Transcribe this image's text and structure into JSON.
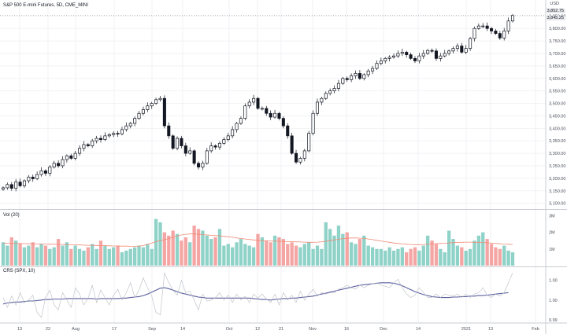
{
  "header": {
    "title": "S&P 500 E-mini Futures, 5D, CME_MINI"
  },
  "price_axis": {
    "currency": "USD",
    "last_price_label": "3,852.75",
    "secondary_label": "3,845.25"
  },
  "volume_pane": {
    "title": "Vol (20)"
  },
  "crs_pane": {
    "title": "CRS (SPX, 10)"
  },
  "colors": {
    "up": "#26a69a",
    "down": "#ef5350",
    "vol_up": "#8fd2c8",
    "vol_down": "#f4a6a4",
    "ma": "#f08a76",
    "crs_main": "#5a5f9e",
    "crs_ref": "#b9bcc3",
    "grid": "#f0f2f5",
    "axis": "#c9ccd3"
  },
  "chart_data": [
    {
      "type": "candlestick",
      "title": "S&P 500 E-mini Futures, 5D, CME_MINI",
      "x_tick_labels": [
        "13",
        "22",
        "Aug",
        "17",
        "Sep",
        "14",
        "Oct",
        "12",
        "21",
        "Nov",
        "16",
        "Dec",
        "14",
        "2021",
        "13",
        "Feb"
      ],
      "ylim": [
        3080,
        3870
      ],
      "y_tick_labels": [
        "3,850.00",
        "3,800.00",
        "3,750.00",
        "3,700.00",
        "3,650.00",
        "3,600.00",
        "3,550.00",
        "3,500.00",
        "3,450.00",
        "3,400.00",
        "3,350.00",
        "3,300.00",
        "3,250.00",
        "3,200.00",
        "3,150.00",
        "3,100.00"
      ],
      "y_ticks": [
        3850,
        3800,
        3750,
        3700,
        3650,
        3600,
        3550,
        3500,
        3450,
        3400,
        3350,
        3300,
        3250,
        3200,
        3150,
        3100
      ],
      "close": [
        3162,
        3175,
        3160,
        3185,
        3170,
        3190,
        3205,
        3198,
        3215,
        3230,
        3220,
        3245,
        3260,
        3250,
        3275,
        3290,
        3280,
        3300,
        3320,
        3335,
        3330,
        3350,
        3360,
        3355,
        3370,
        3375,
        3380,
        3378,
        3395,
        3410,
        3420,
        3440,
        3460,
        3475,
        3490,
        3500,
        3515,
        3520,
        3410,
        3370,
        3320,
        3360,
        3330,
        3300,
        3310,
        3260,
        3245,
        3260,
        3310,
        3330,
        3325,
        3340,
        3355,
        3370,
        3395,
        3420,
        3440,
        3490,
        3505,
        3520,
        3480,
        3480,
        3460,
        3445,
        3460,
        3440,
        3410,
        3370,
        3300,
        3265,
        3280,
        3310,
        3380,
        3460,
        3505,
        3520,
        3540,
        3550,
        3560,
        3580,
        3600,
        3595,
        3610,
        3620,
        3600,
        3615,
        3630,
        3640,
        3660,
        3670,
        3680,
        3685,
        3690,
        3700,
        3705,
        3695,
        3680,
        3670,
        3690,
        3700,
        3712,
        3710,
        3680,
        3690,
        3700,
        3710,
        3720,
        3730,
        3705,
        3720,
        3760,
        3800,
        3810,
        3810,
        3800,
        3790,
        3780,
        3762,
        3790,
        3830,
        3852
      ]
    },
    {
      "type": "bar",
      "title": "Vol (20)",
      "y_tick_labels": [
        "3M",
        "2M",
        "1M"
      ],
      "y_ticks": [
        3,
        2,
        1
      ],
      "ylim": [
        0,
        3.3
      ],
      "values": [
        1.4,
        1.2,
        1.7,
        1.5,
        1.3,
        1.1,
        1.2,
        1.4,
        1.1,
        1.3,
        1.2,
        1.0,
        1.1,
        1.6,
        1.2,
        1.4,
        1.0,
        1.2,
        1.0,
        0.9,
        1.1,
        1.3,
        1.0,
        1.5,
        1.2,
        1.0,
        1.1,
        1.2,
        0.8,
        0.9,
        1.0,
        1.1,
        1.2,
        1.1,
        1.3,
        1.0,
        2.8,
        2.6,
        2.0,
        1.8,
        2.1,
        1.9,
        1.5,
        1.7,
        1.4,
        2.4,
        2.2,
        2.1,
        1.8,
        1.6,
        1.7,
        2.2,
        1.2,
        1.3,
        1.1,
        1.4,
        1.6,
        1.3,
        1.2,
        1.1,
        1.9,
        1.7,
        1.5,
        1.4,
        1.8,
        1.7,
        1.6,
        1.3,
        1.4,
        1.2,
        1.1,
        1.3,
        1.4,
        1.0,
        1.2,
        1.0,
        2.6,
        2.2,
        1.8,
        2.4,
        1.9,
        2.0,
        1.4,
        1.3,
        1.6,
        1.8,
        1.2,
        1.1,
        1.0,
        1.0,
        0.9,
        1.1,
        0.9,
        1.0,
        1.1,
        0.8,
        1.0,
        1.1,
        0.9,
        1.2,
        1.8,
        1.5,
        1.3,
        1.0,
        0.8,
        2.1,
        1.6,
        1.2,
        1.1,
        0.9,
        1.0,
        1.5,
        1.8,
        2.0,
        1.6,
        1.3,
        1.1,
        1.0,
        1.2,
        0.9,
        0.8
      ],
      "ma": [
        1.35,
        1.34,
        1.34,
        1.33,
        1.33,
        1.32,
        1.31,
        1.31,
        1.3,
        1.3,
        1.29,
        1.28,
        1.28,
        1.27,
        1.27,
        1.26,
        1.25,
        1.25,
        1.24,
        1.23,
        1.22,
        1.22,
        1.21,
        1.2,
        1.2,
        1.19,
        1.18,
        1.18,
        1.17,
        1.17,
        1.16,
        1.16,
        1.17,
        1.2,
        1.28,
        1.36,
        1.44,
        1.5,
        1.56,
        1.62,
        1.7,
        1.78,
        1.84,
        1.88,
        1.9,
        1.9,
        1.88,
        1.86,
        1.84,
        1.82,
        1.8,
        1.78,
        1.76,
        1.73,
        1.7,
        1.66,
        1.63,
        1.6,
        1.57,
        1.54,
        1.52,
        1.5,
        1.49,
        1.48,
        1.47,
        1.46,
        1.45,
        1.44,
        1.44,
        1.43,
        1.42,
        1.41,
        1.4,
        1.4,
        1.41,
        1.43,
        1.46,
        1.5,
        1.54,
        1.58,
        1.62,
        1.64,
        1.66,
        1.66,
        1.65,
        1.63,
        1.6,
        1.56,
        1.52,
        1.48,
        1.44,
        1.4,
        1.36,
        1.33,
        1.3,
        1.28,
        1.27,
        1.26,
        1.26,
        1.27,
        1.28,
        1.3,
        1.32,
        1.33,
        1.34,
        1.36,
        1.38,
        1.39,
        1.4,
        1.41,
        1.41,
        1.4,
        1.39,
        1.38,
        1.37,
        1.35,
        1.33,
        1.31,
        1.29,
        1.28,
        1.27
      ]
    },
    {
      "type": "line",
      "title": "CRS (SPX, 10)",
      "y_tick_labels": [
        "1.00",
        "1.00",
        "0.99"
      ],
      "y_ticks": [
        1.004,
        1.0,
        0.996
      ],
      "ylim": [
        0.9955,
        1.0065
      ],
      "series": [
        {
          "values": [
            0.9992,
            0.9994,
            0.9995,
            0.9996,
            0.9996,
            0.9997,
            0.9998,
            0.9998,
            0.9999,
            1.0,
            1.0001,
            1.0001,
            1.0002,
            1.0002,
            1.0002,
            1.0003,
            1.0003,
            1.0003,
            1.0003,
            1.0003,
            1.0003,
            1.0003,
            1.0002,
            1.0003,
            1.0003,
            1.0003,
            1.0003,
            1.0003,
            1.0004,
            1.0004,
            1.0005,
            1.0006,
            1.0007,
            1.0009,
            1.0012,
            1.0016,
            1.002,
            1.0024,
            1.0025,
            1.0023,
            1.002,
            1.0017,
            1.0014,
            1.0012,
            1.001,
            1.0008,
            1.0006,
            1.0005,
            1.0004,
            1.0004,
            1.0004,
            1.0004,
            1.0004,
            1.0004,
            1.0004,
            1.0004,
            1.0004,
            1.0004,
            1.0004,
            1.0003,
            1.0002,
            1.0001,
            1.0001,
            1.0,
            1.0001,
            1.0002,
            1.0003,
            1.0003,
            1.0004,
            1.0004,
            1.0005,
            1.0006,
            1.0007,
            1.0008,
            1.001,
            1.0012,
            1.0014,
            1.0016,
            1.0018,
            1.002,
            1.0022,
            1.0024,
            1.0026,
            1.0028,
            1.003,
            1.0031,
            1.0032,
            1.0033,
            1.0034,
            1.0035,
            1.0035,
            1.0035,
            1.0034,
            1.0032,
            1.0029,
            1.0025,
            1.0021,
            1.0017,
            1.0014,
            1.0011,
            1.0009,
            1.0007,
            1.0006,
            1.0005,
            1.0005,
            1.0005,
            1.0006,
            1.0006,
            1.0007,
            1.0007,
            1.0008,
            1.0008,
            1.0009,
            1.0009,
            1.001,
            1.0011,
            1.0012,
            1.0013,
            1.0014,
            1.0015
          ]
        },
        {
          "values": [
            1.0005,
            0.9985,
            1.0008,
            0.999,
            1.0015,
            0.9995,
            1.0,
            1.001,
            0.9975,
            0.9965,
            1.0005,
            1.002,
            0.999,
            0.998,
            1.0015,
            1.0,
            0.9985,
            1.0025,
            1.0012,
            0.999,
            1.0003,
            1.003,
            0.9995,
            1.002,
            1.0005,
            0.999,
            1.001,
            1.0022,
            1.0,
            1.0015,
            1.0035,
            1.0005,
            1.002,
            1.0045,
            1.0025,
            1.0008,
            0.9975,
            0.997,
            1.0055,
            1.0035,
            1.002,
            1.001,
            1.004,
            1.0015,
            1.0018,
            1.0,
            0.998,
            1.0012,
            0.9998,
            1.0,
            1.0005,
            1.0015,
            1.0,
            1.001,
            0.9995,
            1.0012,
            1.0,
            1.0008,
            0.9995,
            1.0012,
            1.0004,
            1.0012,
            1.0002,
            0.9995,
            1.0012,
            0.999,
            1.0015,
            1.0,
            1.001,
            0.9995,
            1.0018,
            1.0,
            1.0012,
            1.0022,
            1.0008,
            1.0015,
            1.0012,
            1.0015,
            1.0015,
            1.0022,
            1.0025,
            1.003,
            1.0025,
            1.0022,
            1.003,
            1.0025,
            1.003,
            1.0033,
            1.0035,
            1.003,
            1.0028,
            1.0025,
            1.0035,
            1.0042,
            1.0025,
            1.0012,
            1.0005,
            1.001,
            1.0025,
            1.0015,
            1.0005,
            1.0005,
            1.0012,
            1.0005,
            1.0012,
            1.001,
            1.0008,
            1.0012,
            1.0005,
            1.0012,
            1.0005,
            1.0012,
            1.0015,
            1.0025,
            1.001,
            1.0005,
            1.0012,
            1.0008,
            1.0015,
            1.0035,
            1.0055
          ]
        }
      ]
    }
  ]
}
